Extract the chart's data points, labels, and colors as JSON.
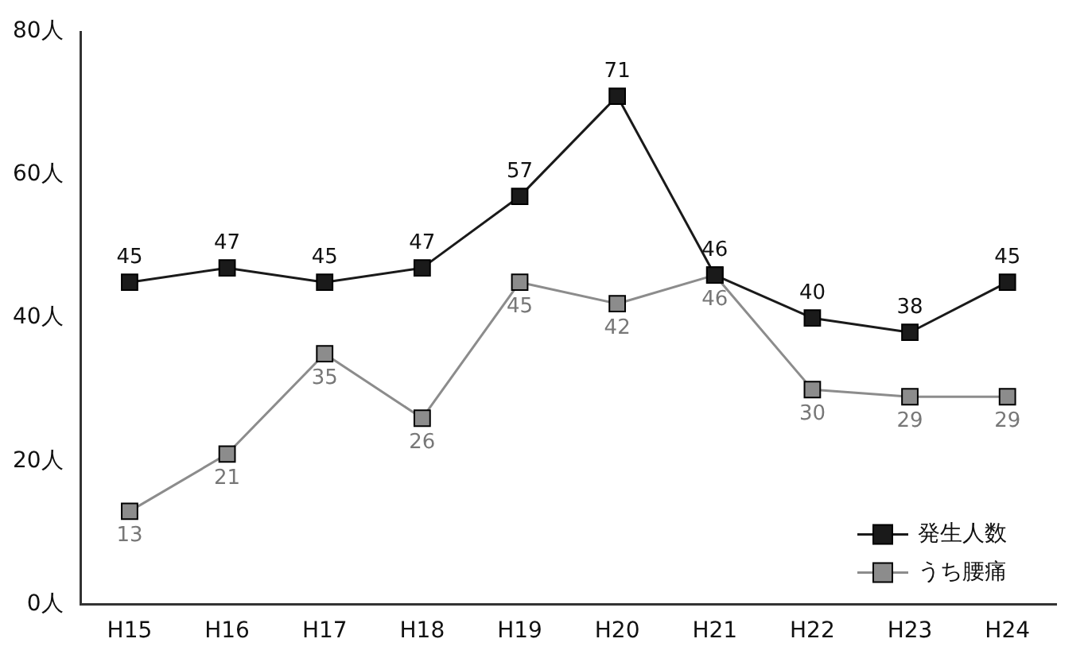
{
  "chart_data": {
    "type": "line",
    "categories": [
      "H15",
      "H16",
      "H17",
      "H18",
      "H19",
      "H20",
      "H21",
      "H22",
      "H23",
      "H24"
    ],
    "series": [
      {
        "name": "発生人数",
        "color": "#1a1a1a",
        "values": [
          45,
          47,
          45,
          47,
          57,
          71,
          46,
          40,
          38,
          45
        ]
      },
      {
        "name": "うち腰痛",
        "color": "#8c8c8c",
        "values": [
          13,
          21,
          35,
          26,
          45,
          42,
          46,
          30,
          29,
          29
        ]
      }
    ],
    "ylim": [
      0,
      80
    ],
    "yticks": [
      {
        "value": 0,
        "label": "0人"
      },
      {
        "value": 20,
        "label": "20人"
      },
      {
        "value": 40,
        "label": "40人"
      },
      {
        "value": 60,
        "label": "60人"
      },
      {
        "value": 80,
        "label": "80人"
      }
    ],
    "grid": false,
    "legend": "bottom right",
    "marker": "square",
    "line_style": "solid",
    "data_labels": true
  }
}
